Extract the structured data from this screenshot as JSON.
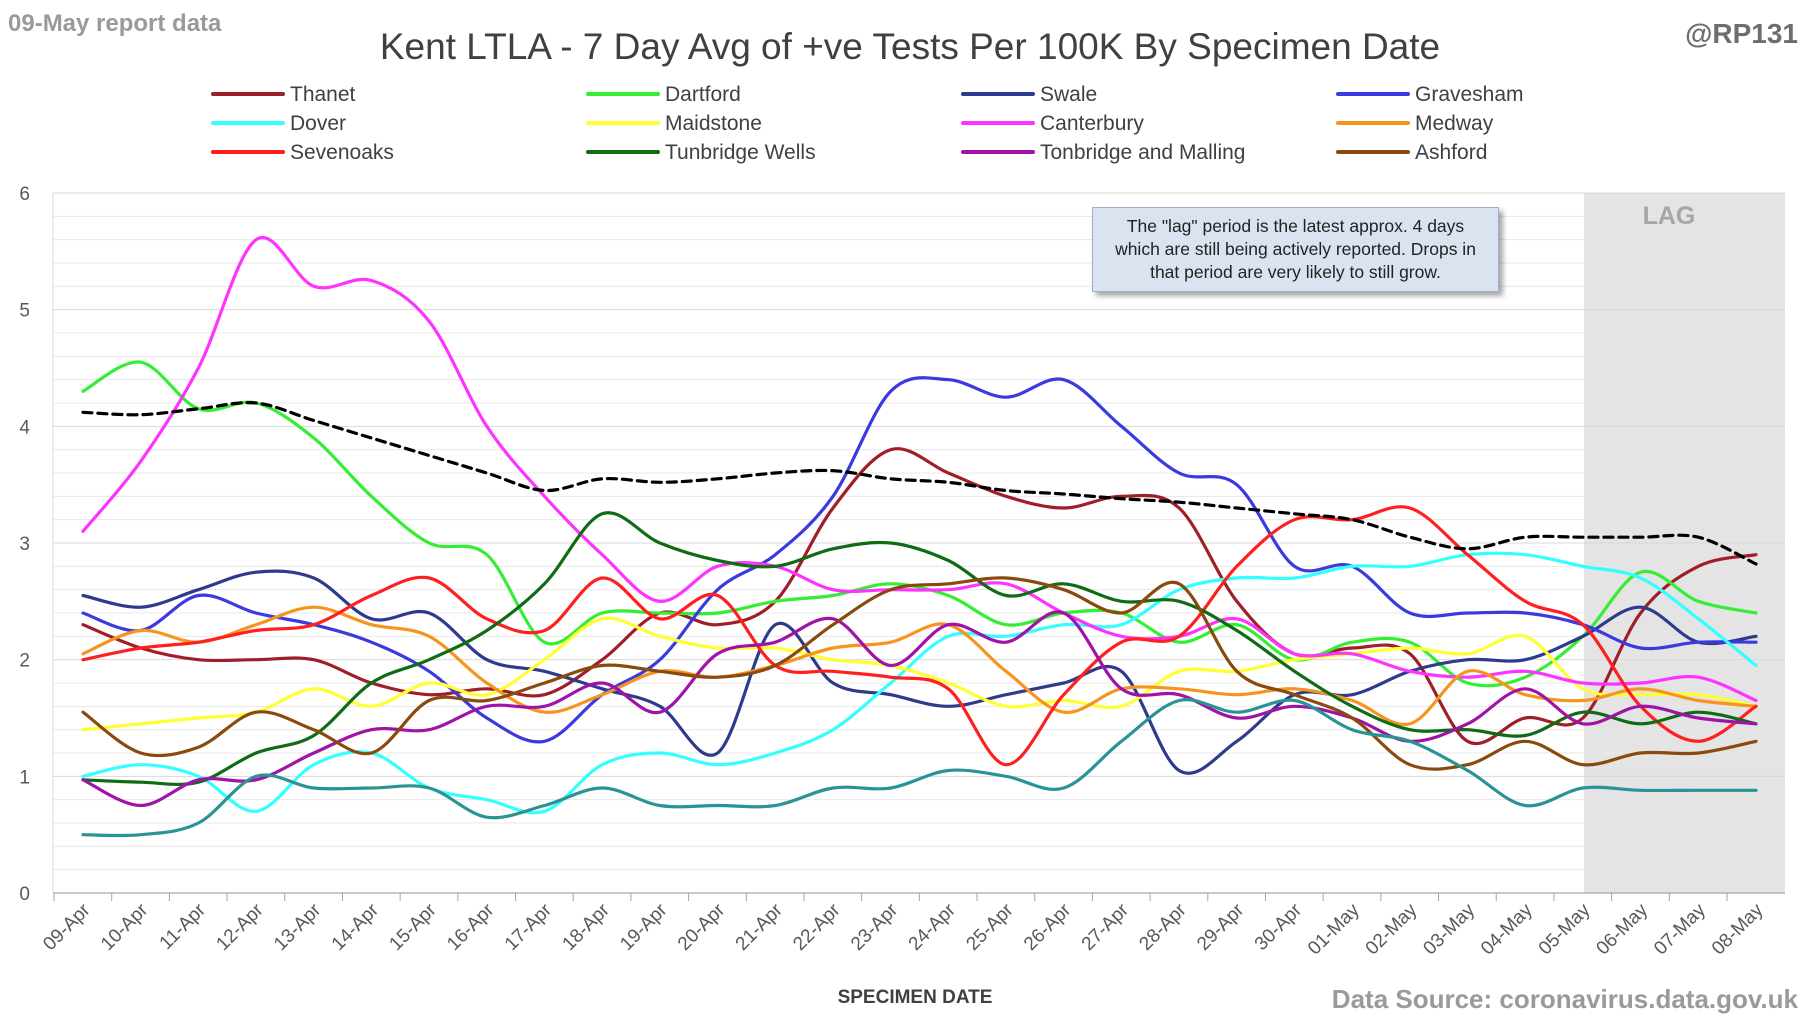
{
  "header": {
    "report_date": "09-May report data",
    "handle": "@RP131",
    "title": "Kent  LTLA - 7 Day Avg of +ve Tests Per 100K By Specimen Date",
    "source": "Data Source: coronavirus.data.gov.uk"
  },
  "annotation": {
    "lag_label": "LAG",
    "note": "The \"lag\" period is the latest approx. 4 days which are still being actively reported.  Drops in that period are very likely to still grow."
  },
  "chart_data": {
    "type": "line",
    "title": "Kent  LTLA - 7 Day Avg of +ve Tests Per 100K By Specimen Date",
    "xlabel": "SPECIMEN DATE",
    "ylabel": "",
    "ylim": [
      0,
      6
    ],
    "yticks": [
      0,
      1,
      2,
      3,
      4,
      5,
      6
    ],
    "grid": "horizontal",
    "legend": "top",
    "lag_region": {
      "from": "05-May",
      "to": "08-May"
    },
    "categories": [
      "09-Apr",
      "10-Apr",
      "11-Apr",
      "12-Apr",
      "13-Apr",
      "14-Apr",
      "15-Apr",
      "16-Apr",
      "17-Apr",
      "18-Apr",
      "19-Apr",
      "20-Apr",
      "21-Apr",
      "22-Apr",
      "23-Apr",
      "24-Apr",
      "25-Apr",
      "26-Apr",
      "27-Apr",
      "28-Apr",
      "29-Apr",
      "30-Apr",
      "01-May",
      "02-May",
      "03-May",
      "04-May",
      "05-May",
      "06-May",
      "07-May",
      "08-May"
    ],
    "series": [
      {
        "name": "Thanet",
        "color": "#a01e28",
        "values": [
          2.3,
          2.1,
          2.0,
          2.0,
          2.0,
          1.8,
          1.7,
          1.75,
          1.7,
          2.0,
          2.4,
          2.3,
          2.5,
          3.3,
          3.8,
          3.6,
          3.4,
          3.3,
          3.4,
          3.3,
          2.5,
          2.05,
          2.1,
          2.05,
          1.3,
          1.5,
          1.5,
          2.4,
          2.8,
          2.9
        ]
      },
      {
        "name": "Dartford",
        "color": "#33ee33",
        "values": [
          4.3,
          4.55,
          4.15,
          4.2,
          3.9,
          3.4,
          3.0,
          2.9,
          2.15,
          2.4,
          2.4,
          2.4,
          2.5,
          2.55,
          2.65,
          2.55,
          2.3,
          2.4,
          2.4,
          2.15,
          2.3,
          2.0,
          2.15,
          2.15,
          1.8,
          1.85,
          2.2,
          2.75,
          2.5,
          2.4
        ]
      },
      {
        "name": "Swale",
        "color": "#2e3a8c",
        "values": [
          2.55,
          2.45,
          2.6,
          2.75,
          2.7,
          2.35,
          2.4,
          2.0,
          1.9,
          1.75,
          1.6,
          1.2,
          2.3,
          1.8,
          1.7,
          1.6,
          1.7,
          1.8,
          1.9,
          1.05,
          1.3,
          1.7,
          1.7,
          1.9,
          2.0,
          2.0,
          2.2,
          2.45,
          2.15,
          2.2
        ]
      },
      {
        "name": "Gravesham",
        "color": "#3a3ae0",
        "values": [
          2.4,
          2.25,
          2.55,
          2.4,
          2.3,
          2.15,
          1.9,
          1.5,
          1.3,
          1.7,
          2.0,
          2.6,
          2.9,
          3.4,
          4.3,
          4.4,
          4.25,
          4.4,
          4.0,
          3.6,
          3.5,
          2.8,
          2.8,
          2.4,
          2.4,
          2.4,
          2.3,
          2.1,
          2.15,
          2.15
        ]
      },
      {
        "name": "Dover",
        "color": "#33ffff",
        "values": [
          1.0,
          1.1,
          1.0,
          0.7,
          1.1,
          1.2,
          0.9,
          0.8,
          0.7,
          1.1,
          1.2,
          1.1,
          1.2,
          1.4,
          1.8,
          2.2,
          2.2,
          2.3,
          2.3,
          2.6,
          2.7,
          2.7,
          2.8,
          2.8,
          2.9,
          2.9,
          2.8,
          2.7,
          2.35,
          1.95
        ]
      },
      {
        "name": "Maidstone",
        "color": "#ffff33",
        "values": [
          1.4,
          1.45,
          1.5,
          1.55,
          1.75,
          1.6,
          1.8,
          1.7,
          2.0,
          2.35,
          2.2,
          2.1,
          2.1,
          2.0,
          1.95,
          1.8,
          1.6,
          1.65,
          1.6,
          1.9,
          1.9,
          2.0,
          2.05,
          2.1,
          2.05,
          2.2,
          1.75,
          1.7,
          1.7,
          1.6
        ]
      },
      {
        "name": "Canterbury",
        "color": "#ff33ff",
        "values": [
          3.1,
          3.7,
          4.5,
          5.6,
          5.2,
          5.25,
          4.9,
          4.0,
          3.4,
          2.9,
          2.5,
          2.8,
          2.8,
          2.6,
          2.6,
          2.6,
          2.65,
          2.4,
          2.2,
          2.2,
          2.35,
          2.05,
          2.05,
          1.9,
          1.85,
          1.9,
          1.8,
          1.8,
          1.85,
          1.65
        ]
      },
      {
        "name": "Medway",
        "color": "#f7941d",
        "values": [
          2.05,
          2.25,
          2.15,
          2.3,
          2.45,
          2.3,
          2.2,
          1.8,
          1.55,
          1.7,
          1.9,
          1.85,
          1.95,
          2.1,
          2.15,
          2.3,
          1.9,
          1.55,
          1.75,
          1.75,
          1.7,
          1.75,
          1.65,
          1.45,
          1.9,
          1.7,
          1.65,
          1.75,
          1.65,
          1.6
        ]
      },
      {
        "name": "Sevenoaks",
        "color": "#ff1f1f",
        "values": [
          2.0,
          2.1,
          2.15,
          2.25,
          2.3,
          2.55,
          2.7,
          2.35,
          2.25,
          2.7,
          2.35,
          2.55,
          1.95,
          1.9,
          1.85,
          1.75,
          1.1,
          1.7,
          2.15,
          2.2,
          2.8,
          3.2,
          3.2,
          3.3,
          2.9,
          2.5,
          2.3,
          1.6,
          1.3,
          1.6
        ]
      },
      {
        "name": "Tunbridge Wells",
        "color": "#0f6b14",
        "values": [
          0.97,
          0.95,
          0.95,
          1.2,
          1.35,
          1.8,
          2.0,
          2.25,
          2.65,
          3.25,
          3.0,
          2.85,
          2.8,
          2.95,
          3.0,
          2.85,
          2.55,
          2.65,
          2.5,
          2.5,
          2.25,
          1.9,
          1.6,
          1.4,
          1.4,
          1.35,
          1.55,
          1.45,
          1.55,
          1.45
        ]
      },
      {
        "name": "Tonbridge and Malling",
        "color": "#a012a8",
        "values": [
          0.97,
          0.75,
          0.97,
          0.97,
          1.2,
          1.4,
          1.4,
          1.6,
          1.6,
          1.8,
          1.55,
          2.05,
          2.15,
          2.35,
          1.95,
          2.3,
          2.15,
          2.4,
          1.75,
          1.7,
          1.5,
          1.6,
          1.5,
          1.3,
          1.45,
          1.75,
          1.45,
          1.6,
          1.5,
          1.45
        ]
      },
      {
        "name": "Ashford",
        "color": "#8a4a0e",
        "values": [
          1.55,
          1.2,
          1.25,
          1.55,
          1.4,
          1.2,
          1.65,
          1.65,
          1.8,
          1.95,
          1.9,
          1.85,
          1.95,
          2.3,
          2.6,
          2.65,
          2.7,
          2.6,
          2.4,
          2.65,
          1.9,
          1.7,
          1.5,
          1.1,
          1.1,
          1.3,
          1.1,
          1.2,
          1.2,
          1.3
        ]
      },
      {
        "name": "",
        "color": "#2a9494",
        "values": [
          0.5,
          0.5,
          0.6,
          1.0,
          0.9,
          0.9,
          0.9,
          0.65,
          0.75,
          0.9,
          0.75,
          0.75,
          0.75,
          0.9,
          0.9,
          1.05,
          1.0,
          0.9,
          1.3,
          1.65,
          1.55,
          1.65,
          1.4,
          1.3,
          1.05,
          0.75,
          0.9,
          0.88,
          0.88,
          0.88
        ]
      },
      {
        "name": "",
        "color": "#000000",
        "dashed": true,
        "values": [
          4.12,
          4.1,
          4.15,
          4.2,
          4.05,
          3.9,
          3.75,
          3.6,
          3.45,
          3.55,
          3.52,
          3.55,
          3.6,
          3.62,
          3.55,
          3.52,
          3.45,
          3.42,
          3.38,
          3.35,
          3.3,
          3.25,
          3.2,
          3.05,
          2.95,
          3.05,
          3.05,
          3.05,
          3.05,
          2.82
        ]
      }
    ]
  }
}
